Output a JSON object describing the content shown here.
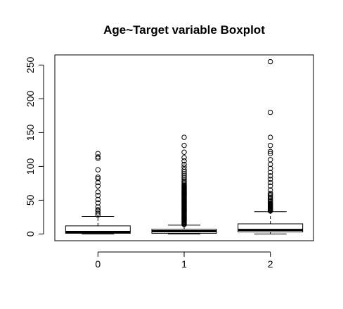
{
  "chart_data": {
    "type": "boxplot",
    "title": "Age~Target variable Boxplot",
    "xlabel": "",
    "ylabel": "",
    "categories": [
      "0",
      "1",
      "2"
    ],
    "y_ticks": [
      0,
      50,
      100,
      150,
      200,
      250
    ],
    "ylim": [
      -10,
      265
    ],
    "grid": false,
    "legend": "none",
    "boxes": [
      {
        "category": "0",
        "whisker_low": 0,
        "q1": 1,
        "median": 3,
        "q3": 12,
        "whisker_high": 26,
        "outliers": [
          28,
          31,
          34,
          36,
          40,
          46,
          51,
          57,
          62,
          71,
          76,
          82,
          84,
          95,
          112,
          114,
          119
        ]
      },
      {
        "category": "1",
        "whisker_low": 0,
        "q1": 1,
        "median": 4,
        "q3": 7,
        "whisker_high": 13,
        "outliers": [
          14,
          15,
          16,
          17,
          18,
          19,
          20,
          21,
          22,
          23,
          24,
          25,
          26,
          27,
          28,
          29,
          30,
          31,
          32,
          33,
          34,
          35,
          36,
          37,
          38,
          39,
          40,
          41,
          42,
          43,
          44,
          45,
          46,
          47,
          48,
          49,
          50,
          51,
          52,
          53,
          54,
          55,
          56,
          57,
          58,
          59,
          60,
          61,
          62,
          63,
          64,
          65,
          66,
          67,
          68,
          69,
          70,
          71,
          72,
          74,
          76,
          78,
          80,
          83,
          86,
          89,
          92,
          95,
          99,
          103,
          108,
          113,
          121,
          131,
          143
        ]
      },
      {
        "category": "2",
        "whisker_low": 0,
        "q1": 3,
        "median": 6,
        "q3": 15,
        "whisker_high": 33,
        "outliers": [
          34,
          35,
          36,
          37,
          38,
          39,
          40,
          41,
          42,
          43,
          44,
          45,
          46,
          48,
          50,
          52,
          54,
          56,
          58,
          60,
          65,
          71,
          76,
          81,
          86,
          91,
          97,
          103,
          110,
          119,
          122,
          131,
          143,
          180,
          255
        ]
      }
    ]
  }
}
